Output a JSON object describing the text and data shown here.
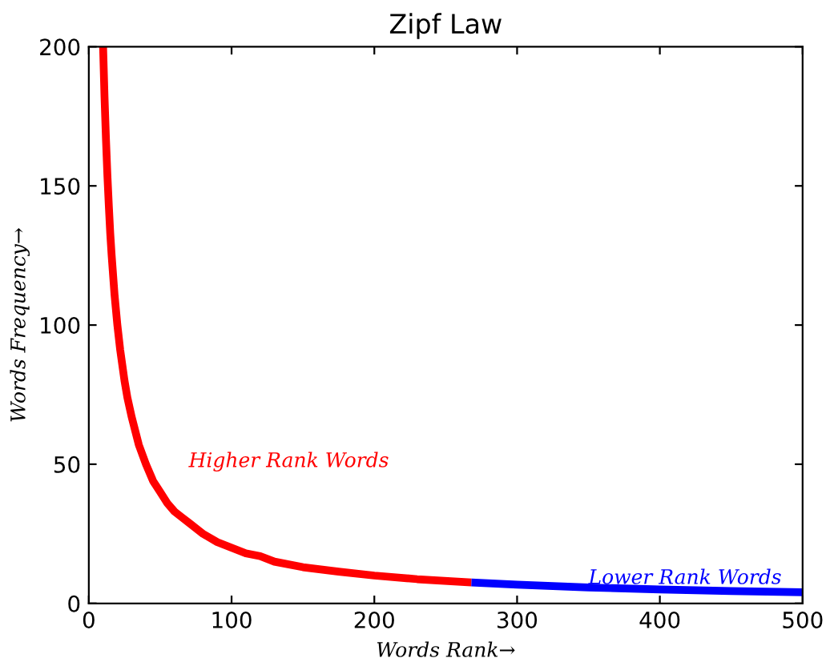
{
  "chart_data": {
    "type": "line",
    "title": "Zipf Law",
    "xlabel": "Words Rank→",
    "ylabel": "Words Frequency→",
    "xlim": [
      0,
      500
    ],
    "ylim": [
      0,
      200
    ],
    "xticks": [
      0,
      100,
      200,
      300,
      400,
      500
    ],
    "yticks": [
      0,
      50,
      100,
      150,
      200
    ],
    "grid": false,
    "legend": false,
    "marker": "none",
    "line_style": "solid",
    "series": [
      {
        "name": "Higher Rank Words",
        "color": "#ff0000",
        "x": [
          10,
          11,
          12,
          13,
          14,
          15,
          16,
          18,
          20,
          22,
          25,
          27,
          30,
          35,
          40,
          45,
          50,
          55,
          60,
          65,
          70,
          80,
          90,
          100,
          110,
          120,
          130,
          150,
          175,
          200,
          230,
          268
        ],
        "values": [
          200,
          182,
          167,
          154,
          143,
          133,
          125,
          111,
          100,
          91,
          80,
          74,
          67,
          57,
          50,
          44,
          40,
          36,
          33,
          31,
          29,
          25,
          22,
          20,
          18,
          17,
          15,
          13,
          11.4,
          10,
          8.7,
          7.5
        ]
      },
      {
        "name": "Lower Rank Words",
        "color": "#0000ff",
        "x": [
          268,
          300,
          350,
          400,
          450,
          500
        ],
        "values": [
          7.5,
          6.7,
          5.7,
          5,
          4.4,
          4
        ]
      }
    ]
  }
}
